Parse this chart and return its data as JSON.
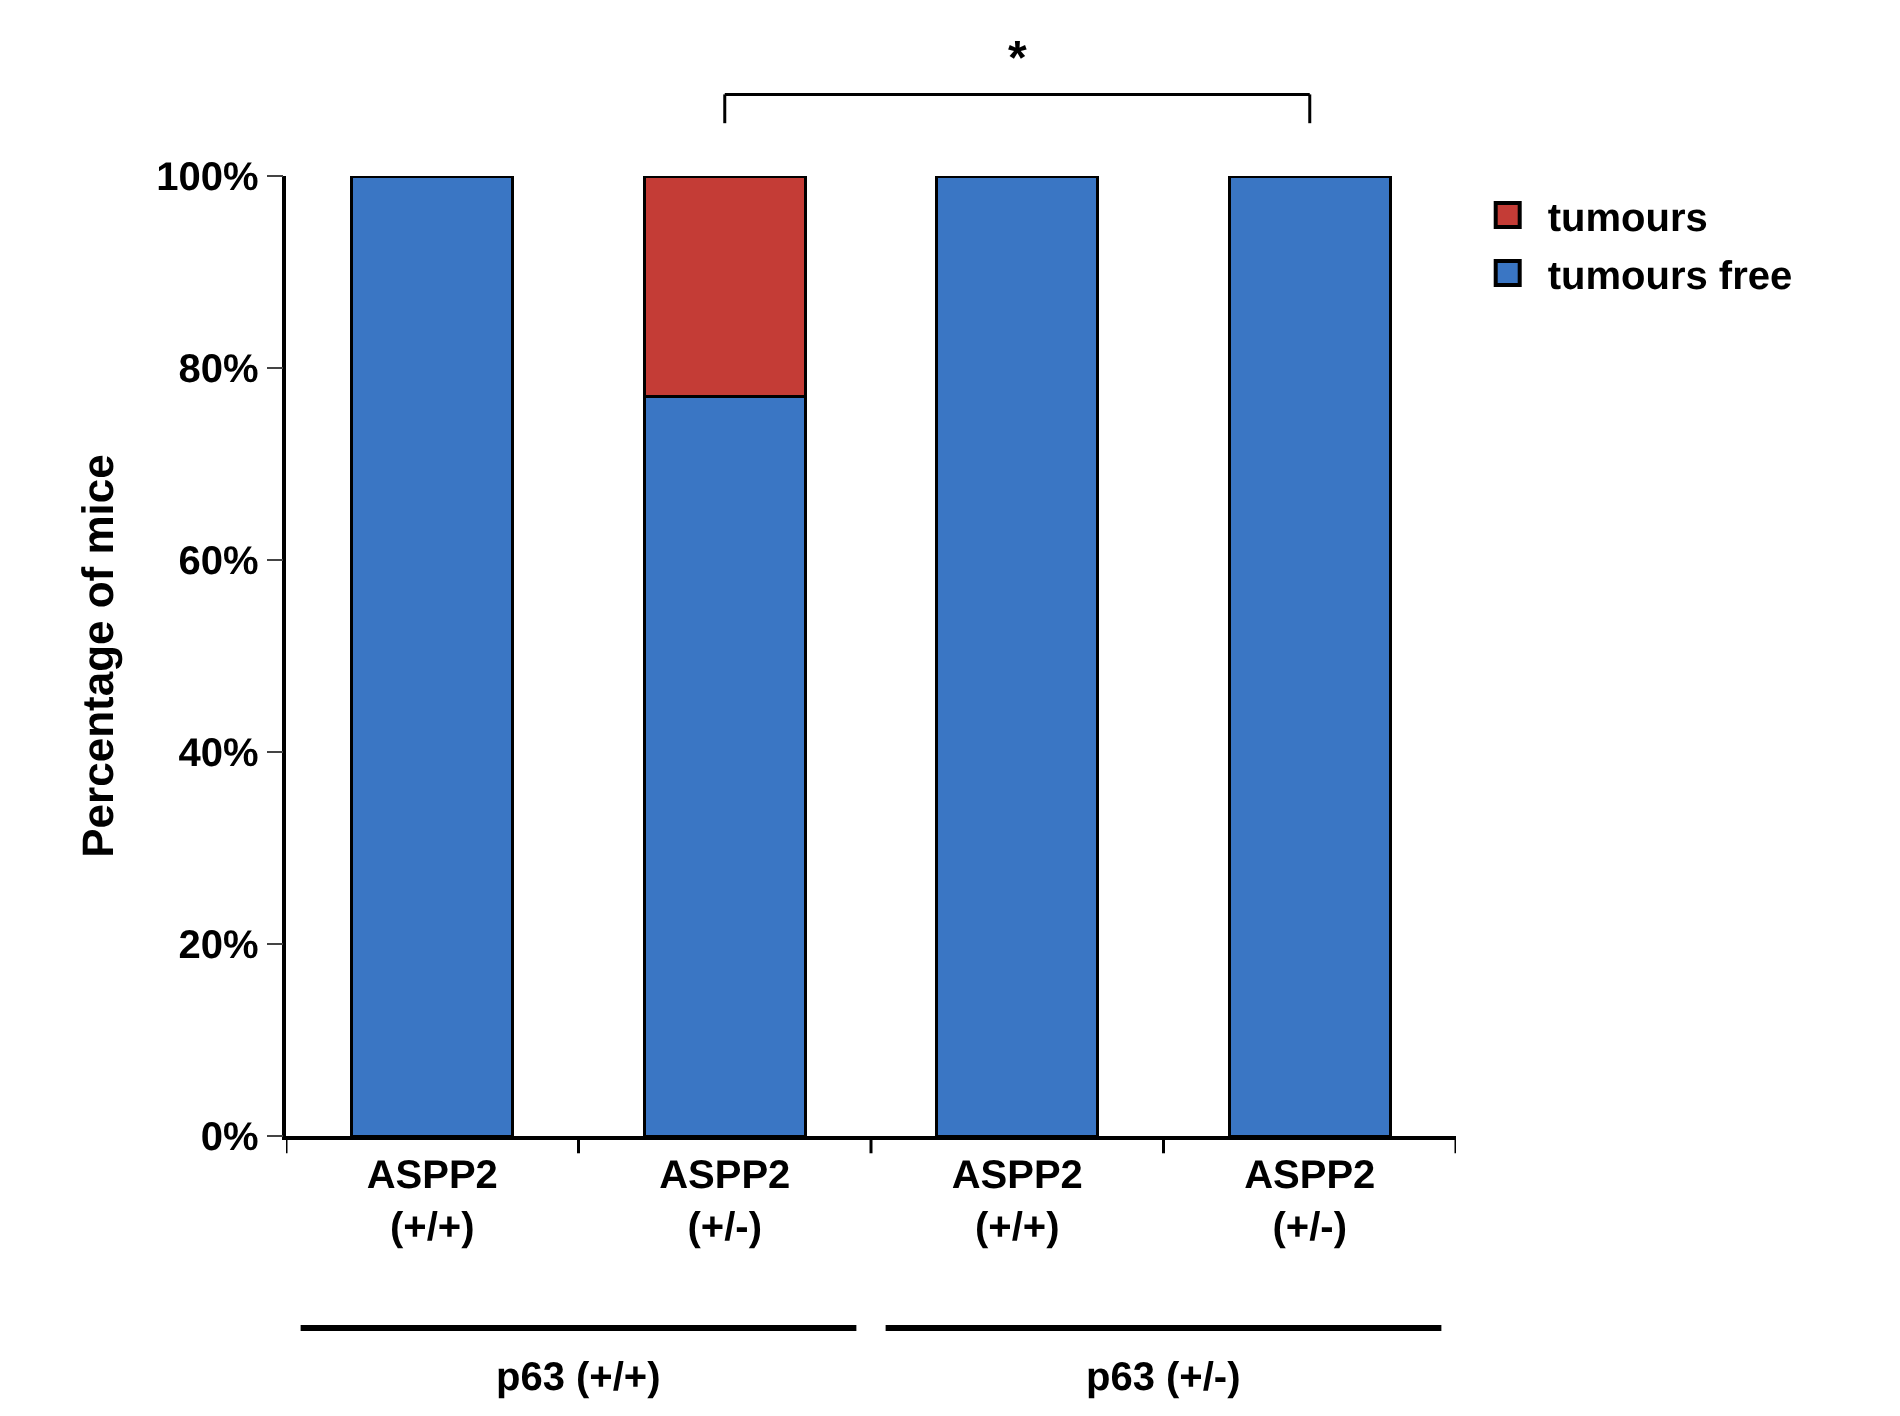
{
  "chart_data": {
    "type": "bar",
    "stacked": true,
    "ylabel": "Percentage of mice",
    "categories": [
      "ASPP2\n(+/+)",
      "ASPP2\n(+/-)",
      "ASPP2\n(+/+)",
      "ASPP2\n(+/-)"
    ],
    "series": [
      {
        "name": "tumours free",
        "color": "#3a76c4",
        "values": [
          100,
          77,
          100,
          100
        ]
      },
      {
        "name": "tumours",
        "color": "#c43c36",
        "values": [
          0,
          23,
          0,
          0
        ]
      }
    ],
    "ylim": [
      0,
      100
    ],
    "yticks": [
      {
        "value": 0,
        "label": "0%"
      },
      {
        "value": 20,
        "label": "20%"
      },
      {
        "value": 40,
        "label": "40%"
      },
      {
        "value": 60,
        "label": "60%"
      },
      {
        "value": 80,
        "label": "80%"
      },
      {
        "value": 100,
        "label": "100%"
      }
    ],
    "legend": "top right",
    "annotations": [
      "*",
      "p63 (+/+)",
      "p63 (+/-)"
    ]
  }
}
